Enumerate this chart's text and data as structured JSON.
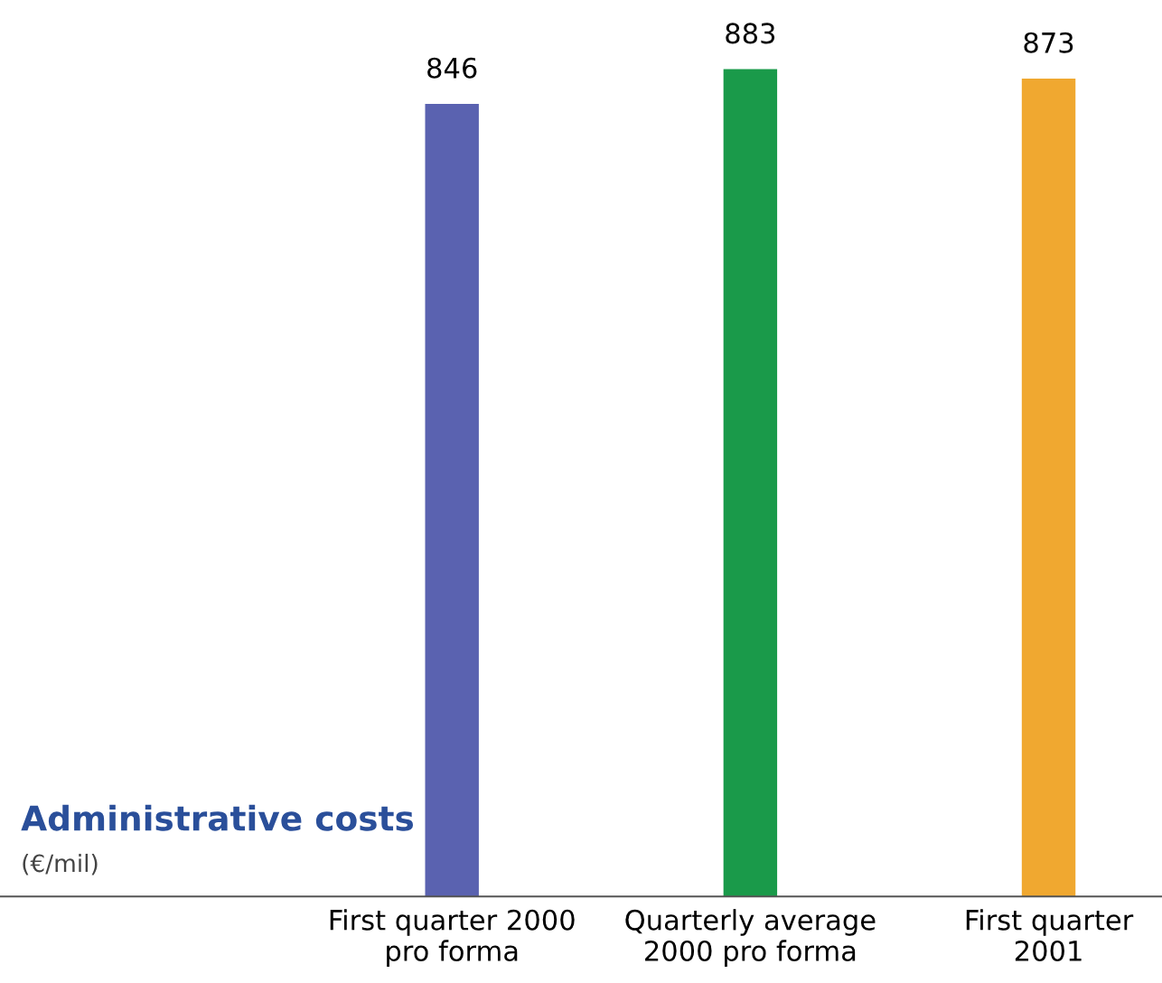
{
  "chart_data": {
    "type": "bar",
    "title": "Administrative costs",
    "subtitle": "(€/mil)",
    "categories": [
      "First quarter 2000\npro forma",
      "Quarterly average\n2000 pro forma",
      "First quarter\n2001"
    ],
    "values": [
      846,
      883,
      873
    ],
    "colors": [
      "#5a62b0",
      "#1a9a4a",
      "#f0a830"
    ],
    "data_labels": true,
    "grid": false,
    "legend": false
  }
}
